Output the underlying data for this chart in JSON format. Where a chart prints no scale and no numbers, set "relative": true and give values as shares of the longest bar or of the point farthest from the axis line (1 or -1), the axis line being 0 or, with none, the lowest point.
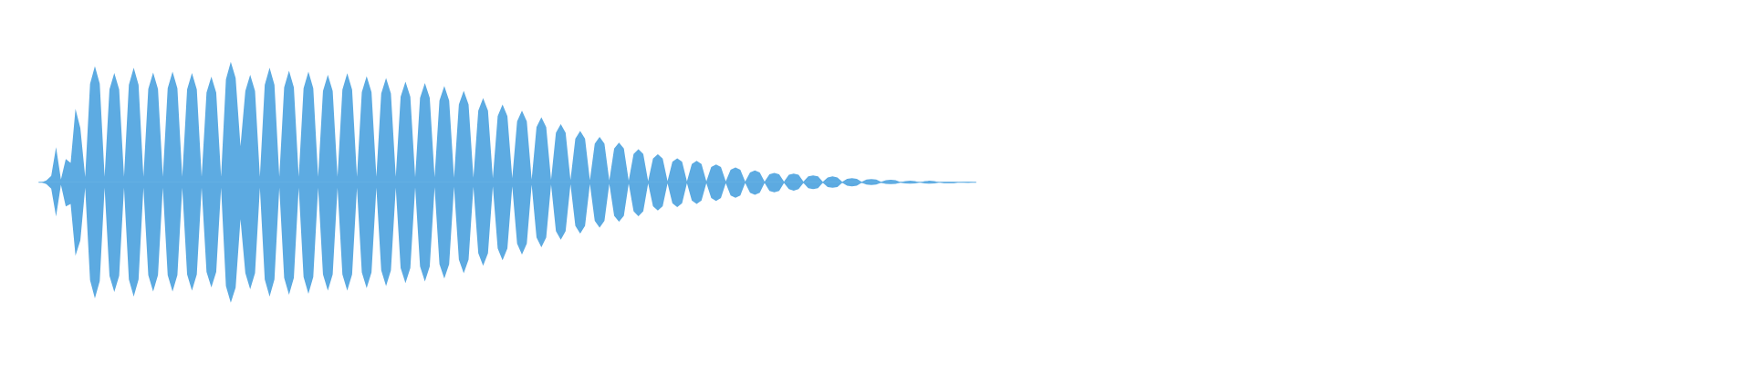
{
  "chart_data": {
    "type": "area",
    "relative": true,
    "tick_labels": false,
    "categories": [
      null,
      null,
      null,
      null,
      null,
      null,
      null,
      null,
      null,
      null,
      null,
      null,
      null,
      null,
      null,
      null,
      null,
      null,
      null,
      null,
      null,
      null,
      null,
      null,
      null,
      null,
      null,
      null,
      null,
      null,
      null,
      null,
      null,
      null,
      null,
      null,
      null,
      null,
      null,
      null,
      null,
      null,
      null,
      null,
      null,
      null,
      null,
      null,
      null,
      null,
      null,
      null,
      null,
      null,
      null,
      null,
      null,
      null,
      null,
      null,
      null,
      null,
      null,
      null,
      null,
      null,
      null,
      null,
      null,
      null,
      null,
      null,
      null,
      null,
      null,
      null,
      null,
      null,
      null,
      null,
      null,
      null,
      null,
      null,
      null,
      null,
      null,
      null,
      null,
      null,
      null,
      null,
      null,
      null,
      null,
      null,
      null,
      null,
      null,
      null,
      null,
      null,
      null,
      null,
      null,
      null,
      null,
      null,
      null,
      null,
      null,
      null,
      null,
      null,
      null,
      null,
      null,
      null,
      null,
      null,
      null,
      null,
      null,
      null,
      null,
      null,
      null,
      null,
      null,
      null,
      null,
      null,
      null,
      null,
      null,
      null,
      null,
      null,
      null,
      null,
      null,
      null,
      null,
      null,
      null,
      null,
      null,
      null,
      null,
      null,
      null,
      null,
      null,
      null,
      null,
      null,
      null,
      null,
      null,
      null,
      null,
      null,
      null,
      null,
      null,
      null,
      null,
      null,
      null,
      null,
      null,
      null,
      null,
      null,
      null,
      null,
      null,
      null,
      null,
      null,
      null,
      null,
      null,
      null,
      null,
      null,
      null,
      null,
      null,
      null,
      null,
      null,
      null
    ],
    "series": [
      {
        "color": "#5dabe2",
        "values": [
          0,
          0.014,
          0.052,
          0.292,
          0.022,
          0.192,
          0.16,
          0.61,
          0.45,
          0.044,
          0.816,
          0.964,
          0.818,
          0.046,
          0.77,
          0.906,
          0.77,
          0.046,
          0.808,
          0.95,
          0.808,
          0.046,
          0.774,
          0.91,
          0.774,
          0.046,
          0.78,
          0.918,
          0.78,
          0.046,
          0.77,
          0.906,
          0.77,
          0.046,
          0.744,
          0.876,
          0.744,
          0.046,
          0.854,
          1.0,
          0.866,
          0.298,
          0.758,
          0.892,
          0.758,
          0.046,
          0.808,
          0.95,
          0.808,
          0.046,
          0.788,
          0.926,
          0.788,
          0.046,
          0.78,
          0.918,
          0.78,
          0.046,
          0.758,
          0.892,
          0.758,
          0.046,
          0.768,
          0.904,
          0.768,
          0.046,
          0.748,
          0.88,
          0.748,
          0.046,
          0.736,
          0.866,
          0.736,
          0.046,
          0.71,
          0.834,
          0.71,
          0.042,
          0.7,
          0.824,
          0.7,
          0.042,
          0.678,
          0.798,
          0.678,
          0.038,
          0.646,
          0.76,
          0.646,
          0.038,
          0.594,
          0.698,
          0.594,
          0.034,
          0.548,
          0.646,
          0.548,
          0.034,
          0.506,
          0.594,
          0.506,
          0.022,
          0.458,
          0.54,
          0.458,
          0.02,
          0.41,
          0.482,
          0.41,
          0.018,
          0.362,
          0.426,
          0.362,
          0.016,
          0.32,
          0.376,
          0.32,
          0.014,
          0.28,
          0.33,
          0.28,
          0.012,
          0.234,
          0.274,
          0.234,
          0.01,
          0.196,
          0.232,
          0.196,
          0.01,
          0.17,
          0.198,
          0.17,
          0.008,
          0.152,
          0.178,
          0.152,
          0.008,
          0.126,
          0.148,
          0.126,
          0.008,
          0.104,
          0.122,
          0.104,
          0.006,
          0.082,
          0.098,
          0.082,
          0.006,
          0.066,
          0.078,
          0.066,
          0.006,
          0.062,
          0.072,
          0.062,
          0.006,
          0.048,
          0.056,
          0.048,
          0.004,
          0.04,
          0.048,
          0.04,
          0.004,
          0.028,
          0.034,
          0.028,
          0.004,
          0.022,
          0.026,
          0.022,
          0.004,
          0.016,
          0.02,
          0.016,
          0.002,
          0.01,
          0.012,
          0.01,
          0,
          0.01,
          0.012,
          0.01,
          0,
          0.002,
          0.004,
          0.002,
          0,
          0.002,
          0.004,
          0
        ]
      },
      {
        "color": "#5caae1",
        "values": [
          0,
          -0.016,
          -0.054,
          -0.284,
          -0.022,
          -0.202,
          -0.18,
          -0.61,
          -0.484,
          -0.046,
          -0.812,
          -0.964,
          -0.82,
          -0.046,
          -0.776,
          -0.912,
          -0.776,
          -0.046,
          -0.808,
          -0.95,
          -0.808,
          -0.046,
          -0.772,
          -0.908,
          -0.772,
          -0.046,
          -0.772,
          -0.908,
          -0.772,
          -0.046,
          -0.766,
          -0.9,
          -0.766,
          -0.046,
          -0.744,
          -0.874,
          -0.744,
          -0.046,
          -0.862,
          -1.0,
          -0.876,
          -0.308,
          -0.754,
          -0.888,
          -0.754,
          -0.046,
          -0.808,
          -0.95,
          -0.808,
          -0.046,
          -0.794,
          -0.934,
          -0.794,
          -0.046,
          -0.786,
          -0.926,
          -0.786,
          -0.046,
          -0.766,
          -0.9,
          -0.766,
          -0.046,
          -0.766,
          -0.9,
          -0.766,
          -0.046,
          -0.748,
          -0.88,
          -0.748,
          -0.046,
          -0.732,
          -0.862,
          -0.732,
          -0.046,
          -0.712,
          -0.838,
          -0.712,
          -0.042,
          -0.7,
          -0.824,
          -0.7,
          -0.042,
          -0.68,
          -0.8,
          -0.68,
          -0.038,
          -0.642,
          -0.756,
          -0.642,
          -0.038,
          -0.59,
          -0.694,
          -0.59,
          -0.034,
          -0.55,
          -0.648,
          -0.55,
          -0.034,
          -0.51,
          -0.6,
          -0.51,
          -0.022,
          -0.458,
          -0.54,
          -0.458,
          -0.02,
          -0.406,
          -0.478,
          -0.406,
          -0.018,
          -0.362,
          -0.426,
          -0.362,
          -0.016,
          -0.32,
          -0.378,
          -0.32,
          -0.014,
          -0.278,
          -0.328,
          -0.278,
          -0.012,
          -0.24,
          -0.282,
          -0.24,
          -0.01,
          -0.2,
          -0.236,
          -0.2,
          -0.01,
          -0.174,
          -0.206,
          -0.174,
          -0.008,
          -0.152,
          -0.18,
          -0.152,
          -0.008,
          -0.132,
          -0.156,
          -0.132,
          -0.008,
          -0.11,
          -0.13,
          -0.11,
          -0.006,
          -0.088,
          -0.104,
          -0.088,
          -0.006,
          -0.072,
          -0.084,
          -0.072,
          -0.006,
          -0.058,
          -0.07,
          -0.058,
          -0.006,
          -0.05,
          -0.058,
          -0.05,
          -0.004,
          -0.04,
          -0.046,
          -0.04,
          -0.004,
          -0.028,
          -0.034,
          -0.028,
          -0.004,
          -0.02,
          -0.024,
          -0.02,
          -0.004,
          -0.014,
          -0.016,
          -0.014,
          -0.002,
          -0.01,
          -0.012,
          -0.01,
          0,
          -0.01,
          -0.012,
          -0.01,
          0,
          -0.008,
          -0.008,
          -0.008,
          0,
          -0.002,
          -0.004,
          0
        ]
      }
    ]
  }
}
